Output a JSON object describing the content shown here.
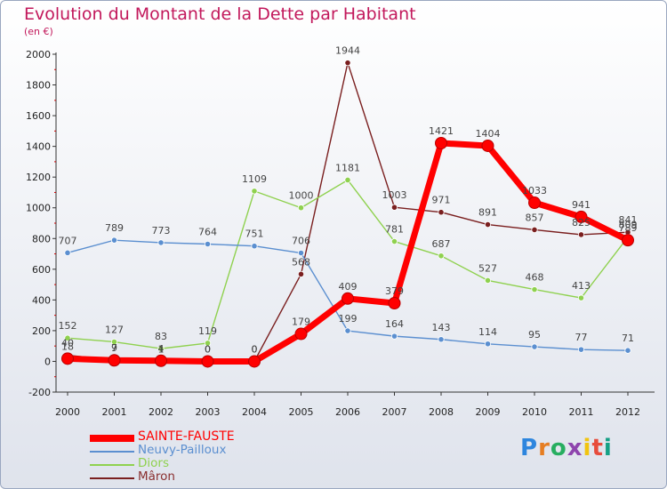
{
  "header": {
    "title": "Evolution du Montant de la Dette par Habitant",
    "subtitle": "(en €)"
  },
  "logo": {
    "text": "Proxiti",
    "colors": [
      "#2e86de",
      "#e67e22",
      "#27ae60",
      "#8e44ad",
      "#f1c40f",
      "#e74c3c",
      "#16a085"
    ]
  },
  "chart_data": {
    "type": "line",
    "title": "Evolution du Montant de la Dette par Habitant",
    "subtitle": "(en €)",
    "x": [
      "2000",
      "2001",
      "2002",
      "2003",
      "2004",
      "2005",
      "2006",
      "2007",
      "2008",
      "2009",
      "2010",
      "2011",
      "2012"
    ],
    "ylim": [
      -200,
      2000
    ],
    "yticks": [
      "-200",
      "0",
      "200",
      "400",
      "600",
      "800",
      "1000",
      "1200",
      "1400",
      "1600",
      "1800",
      "2000"
    ],
    "grid": false,
    "legend_position": "bottom-left",
    "series": [
      {
        "name": "SAINTE-FAUSTE",
        "color": "#ff0000",
        "values": [
          18,
          7,
          4,
          0,
          0,
          179,
          409,
          379,
          1421,
          1404,
          1033,
          941,
          789
        ],
        "labels": [
          "18",
          "7",
          "4",
          "0",
          "0",
          "179",
          "409",
          "379",
          "1421",
          "1404",
          "1033",
          "941",
          "789"
        ]
      },
      {
        "name": "Neuvy-Pailloux",
        "color": "#5b8fd0",
        "values": [
          707,
          789,
          773,
          764,
          751,
          706,
          199,
          164,
          143,
          114,
          95,
          77,
          71
        ],
        "labels": [
          "707",
          "789",
          "773",
          "764",
          "751",
          "706",
          "199",
          "164",
          "143",
          "114",
          "95",
          "77",
          "71"
        ]
      },
      {
        "name": "Diors",
        "color": "#8fd14f",
        "values": [
          152,
          127,
          83,
          119,
          1109,
          1000,
          1181,
          781,
          687,
          527,
          468,
          413,
          809
        ],
        "labels": [
          "152",
          "127",
          "83",
          "119",
          "1109",
          "1000",
          "1181",
          "781",
          "687",
          "527",
          "468",
          "413",
          "809"
        ]
      },
      {
        "name": "Mâron",
        "color": "#7a1f1f",
        "values": [
          40,
          9,
          1,
          0,
          0,
          568,
          1944,
          1003,
          971,
          891,
          857,
          825,
          841
        ],
        "labels": [
          "40",
          "9",
          "1",
          "0",
          "0",
          "568",
          "1944",
          "1003",
          "971",
          "891",
          "857",
          "825",
          "841"
        ]
      }
    ]
  }
}
